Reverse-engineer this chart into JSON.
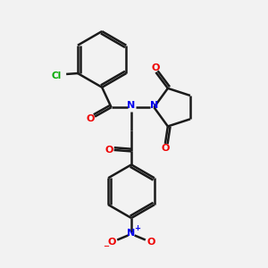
{
  "bg_color": "#f2f2f2",
  "bond_color": "#1a1a1a",
  "N_color": "#0000ee",
  "O_color": "#ee0000",
  "Cl_color": "#00aa00",
  "line_width": 1.8,
  "fig_size": [
    3.0,
    3.0
  ],
  "dpi": 100,
  "xlim": [
    0,
    10
  ],
  "ylim": [
    0,
    10
  ]
}
